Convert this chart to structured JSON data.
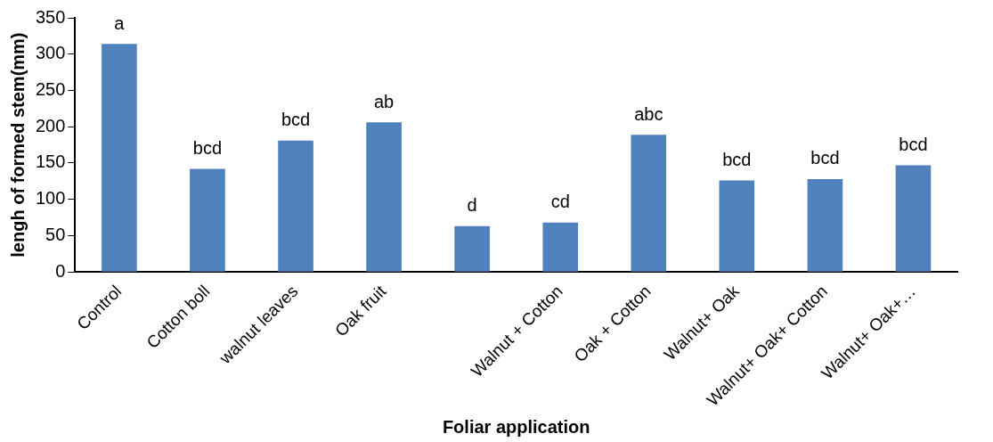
{
  "chart_data": {
    "type": "bar",
    "xlabel": "Foliar application",
    "ylabel": "lengh of formed stem(mm)",
    "categories": [
      "Control",
      "Cotton boll",
      "walnut leaves",
      "Oak fruit",
      null,
      "Walnut + Cotton",
      "Oak + Cotton",
      "Walnut+ Oak",
      "Walnut+ Oak+ Cotton",
      "Walnut+ Oak+…"
    ],
    "values": [
      314,
      142,
      181,
      206,
      63,
      68,
      189,
      126,
      128,
      147
    ],
    "value_labels": [
      "a",
      "bcd",
      "bcd",
      "ab",
      "d",
      "cd",
      "abc",
      "bcd",
      "bcd",
      "bcd"
    ],
    "color": "#4f81bd",
    "ylim": [
      0,
      350
    ],
    "yticks": [
      0,
      50,
      100,
      150,
      200,
      250,
      300,
      350
    ],
    "grid": false,
    "legend": false
  }
}
